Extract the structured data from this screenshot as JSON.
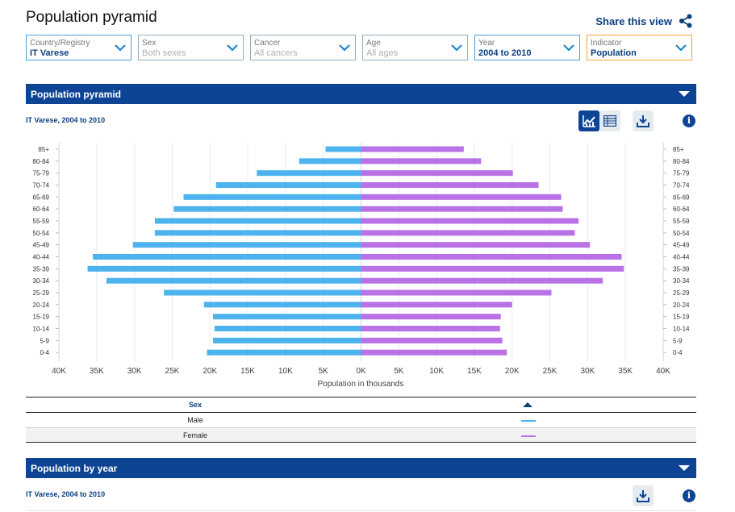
{
  "page_title": "Population pyramid",
  "share_label": "Share this view",
  "filters": [
    {
      "label": "Country/Registry",
      "value": "IT  Varese",
      "muted": false
    },
    {
      "label": "Sex",
      "value": "Both sexes",
      "muted": true
    },
    {
      "label": "Cancer",
      "value": "All cancers",
      "muted": true
    },
    {
      "label": "Age",
      "value": "All ages",
      "muted": true
    },
    {
      "label": "Year",
      "value": "2004 to 2010",
      "muted": false
    },
    {
      "label": "Indicator",
      "value": "Population",
      "muted": false
    }
  ],
  "section1": {
    "title": "Population pyramid",
    "subtitle": "IT Varese, 2004 to 2010"
  },
  "section2": {
    "title": "Population by year",
    "subtitle": "IT Varese, 2004 to 2010"
  },
  "info_symbol": "i",
  "icons": {
    "chart_view": "line-chart-icon",
    "table_view": "table-icon",
    "download": "download-icon",
    "share": "share-icon",
    "info": "info-icon"
  },
  "colors": {
    "male": "#4db3ee",
    "female": "#b872e6",
    "header": "#0d4594",
    "text_dark": "#0c3f7f"
  },
  "legend": {
    "header": "Sex",
    "rows": [
      "Male",
      "Female"
    ]
  },
  "chart_data": {
    "type": "bar",
    "orientation": "horizontal",
    "categories": [
      "85+",
      "80-84",
      "75-79",
      "70-74",
      "65-69",
      "60-64",
      "55-59",
      "50-54",
      "45-49",
      "40-44",
      "35-39",
      "30-34",
      "25-29",
      "20-24",
      "15-19",
      "10-14",
      "5-9",
      "0-4"
    ],
    "series": [
      {
        "name": "Male",
        "values": [
          4.7,
          8.2,
          13.8,
          19.2,
          23.5,
          24.8,
          27.3,
          27.3,
          30.2,
          35.5,
          36.2,
          33.7,
          26.1,
          20.8,
          19.6,
          19.4,
          19.6,
          20.4
        ]
      },
      {
        "name": "Female",
        "values": [
          13.6,
          15.9,
          20.1,
          23.5,
          26.5,
          26.7,
          28.8,
          28.3,
          30.3,
          34.5,
          34.8,
          32.0,
          25.2,
          20.0,
          18.5,
          18.4,
          18.7,
          19.3
        ]
      }
    ],
    "xlabel": "Population in thousands",
    "ylabel": "",
    "xlim": [
      -40,
      40
    ],
    "x_ticks": [
      "40K",
      "35K",
      "30K",
      "25K",
      "20K",
      "15K",
      "10K",
      "5K",
      "0K",
      "5K",
      "10K",
      "15K",
      "20K",
      "25K",
      "30K",
      "35K",
      "40K"
    ],
    "grid": true,
    "legend": "table below chart"
  }
}
